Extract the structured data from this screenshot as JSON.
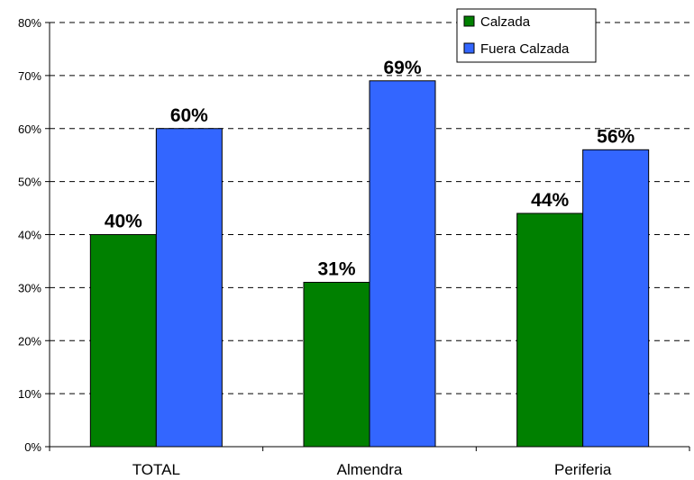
{
  "chart_data": {
    "type": "bar",
    "categories": [
      "TOTAL",
      "Almendra",
      "Periferia"
    ],
    "series": [
      {
        "name": "Calzada",
        "values": [
          40,
          31,
          44
        ],
        "labels": [
          "40%",
          "31%",
          "44%"
        ],
        "color": "#008000"
      },
      {
        "name": "Fuera Calzada",
        "values": [
          60,
          69,
          56
        ],
        "labels": [
          "60%",
          "69%",
          "56%"
        ],
        "color": "#3366FF"
      }
    ],
    "ylim": [
      0,
      80
    ],
    "y_ticks": [
      0,
      10,
      20,
      30,
      40,
      50,
      60,
      70,
      80
    ],
    "y_tick_labels": [
      "0%",
      "10%",
      "20%",
      "30%",
      "40%",
      "50%",
      "60%",
      "70%",
      "80%"
    ],
    "grid": true,
    "grid_style": "dashed",
    "legend_position": "top-right",
    "title": "",
    "xlabel": "",
    "ylabel": ""
  }
}
